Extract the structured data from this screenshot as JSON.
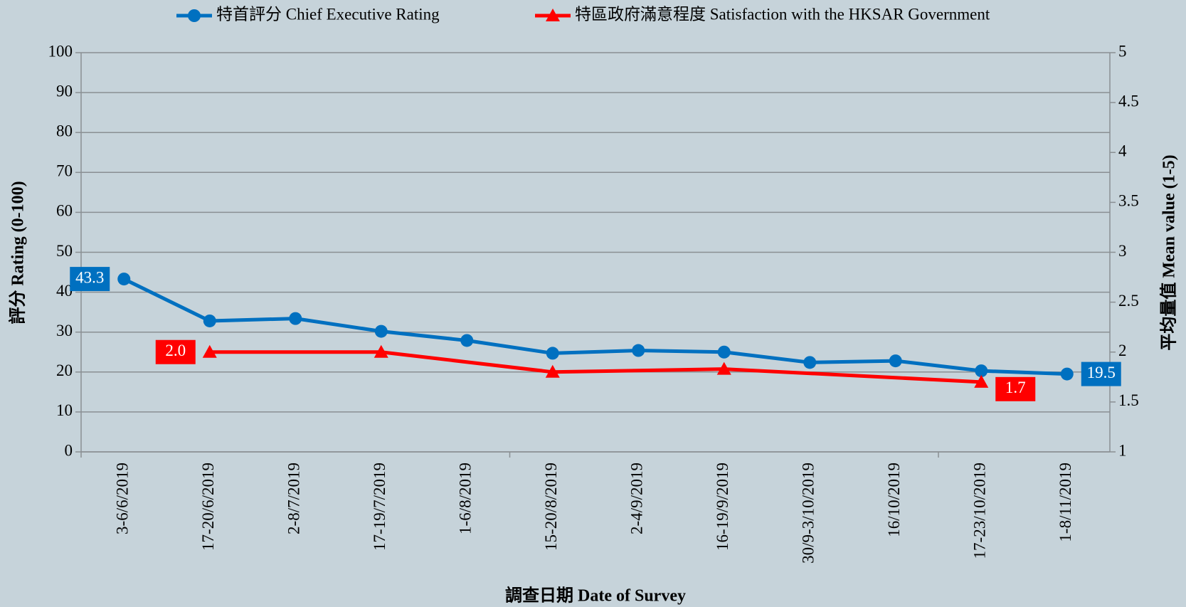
{
  "chart_data": {
    "type": "line",
    "x_label": "調查日期 Date of Survey",
    "y_label": "評分 Rating (0-100)",
    "y2_label": "平均量值 Mean value (1-5)",
    "categories": [
      "3-6/6/2019",
      "17-20/6/2019",
      "2-8/7/2019",
      "17-19/7/2019",
      "1-6/8/2019",
      "15-20/8/2019",
      "2-4/9/2019",
      "16-19/9/2019",
      "30/9-3/10/2019",
      "16/10/2019",
      "17-23/10/2019",
      "1-8/11/2019"
    ],
    "series": [
      {
        "name": "特首評分 Chief Executive Rating",
        "color": "#0070c0",
        "marker": "circle",
        "axis": "y",
        "values": [
          43.3,
          32.8,
          33.4,
          30.2,
          27.9,
          24.7,
          25.4,
          25.0,
          22.4,
          22.8,
          20.3,
          19.5
        ],
        "value_labels": [
          "43.3",
          null,
          null,
          null,
          null,
          null,
          null,
          null,
          null,
          null,
          null,
          "19.5"
        ]
      },
      {
        "name": "特區政府滿意程度 Satisfaction with the HKSAR Government",
        "color": "#ff0000",
        "marker": "triangle",
        "axis": "y2",
        "values": [
          null,
          2.0,
          null,
          2.0,
          null,
          1.8,
          null,
          1.83,
          null,
          null,
          1.7,
          null
        ],
        "value_labels": [
          null,
          "2.0",
          null,
          null,
          null,
          null,
          null,
          null,
          null,
          null,
          "1.7",
          null
        ]
      }
    ],
    "span_gaps": true,
    "ylim": [
      0,
      100
    ],
    "yticks": [
      0,
      10,
      20,
      30,
      40,
      50,
      60,
      70,
      80,
      90,
      100
    ],
    "y2lim": [
      1,
      5
    ],
    "y2ticks": [
      1,
      1.5,
      2,
      2.5,
      3,
      3.5,
      4,
      4.5,
      5
    ],
    "grid": true,
    "legend": "top"
  }
}
